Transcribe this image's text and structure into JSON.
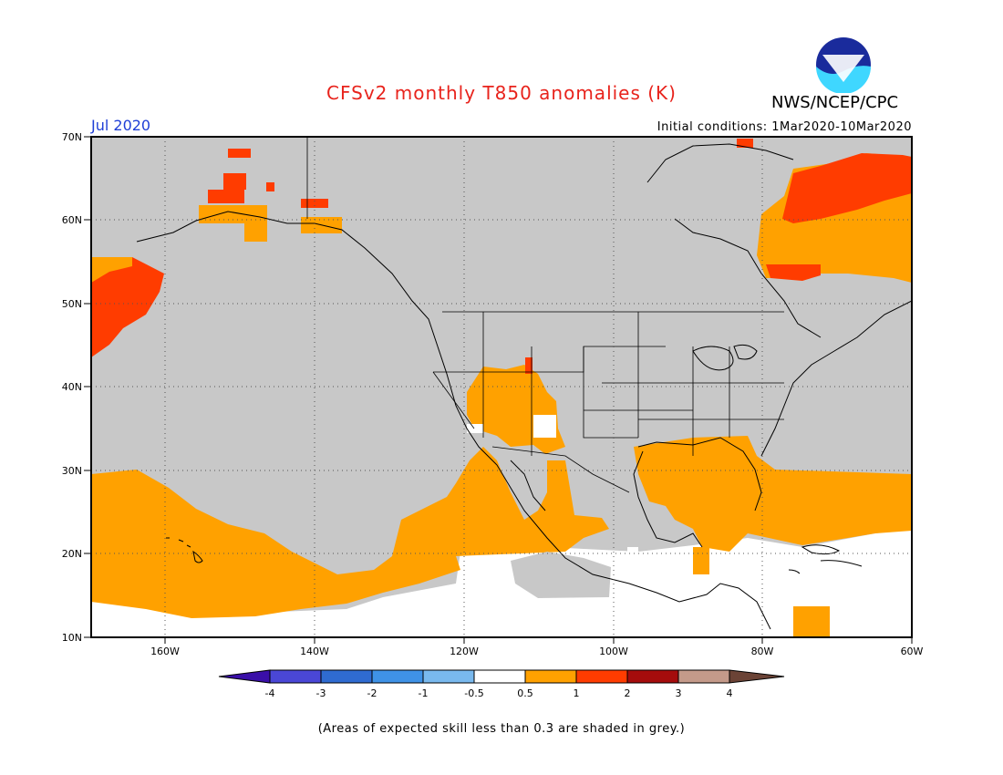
{
  "title": "CFSv2 monthly T850 anomalies (K)",
  "agency": "NWS/NCEP/CPC",
  "logo_text": "NOAA",
  "month_label": "Jul 2020",
  "initial_conditions": "Initial conditions: 1Mar2020-10Mar2020",
  "footer_note": "(Areas of expected skill less than 0.3 are shaded in grey.)",
  "map": {
    "lat_labels": [
      "70N",
      "60N",
      "50N",
      "40N",
      "30N",
      "20N",
      "10N"
    ],
    "lon_labels": [
      "160W",
      "140W",
      "120W",
      "100W",
      "80W",
      "60W"
    ],
    "lat_range": [
      10,
      70
    ],
    "lon_range": [
      -170,
      -60
    ],
    "grid": "dotted"
  },
  "legend": {
    "ticks": [
      "-4",
      "-3",
      "-2",
      "-1",
      "-0.5",
      "0.5",
      "1",
      "2",
      "3",
      "4"
    ],
    "colors": [
      "#3a0fa8",
      "#4a47d6",
      "#2f6bd1",
      "#3f92e6",
      "#79b9ee",
      "#ffffff",
      "#ffa100",
      "#ff3c00",
      "#a50c0c",
      "#c49a8a",
      "#6b4336"
    ]
  },
  "colors": {
    "grey_skill": "#c8c8c8",
    "anomaly_0_5_1": "#ffa100",
    "anomaly_1_2": "#ff3c00"
  }
}
